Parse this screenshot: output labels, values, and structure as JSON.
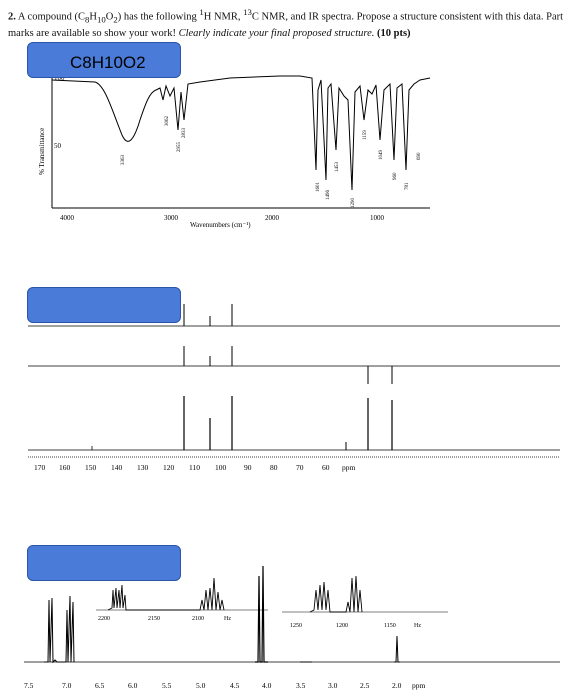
{
  "question": {
    "number": "2.",
    "text_a": "A compound (C",
    "sub8": "8",
    "text_b": "H",
    "sub10": "10",
    "text_c": "O",
    "sub2": "2",
    "text_d": ") has the following ",
    "sup1": "1",
    "text_e": "H NMR, ",
    "sup13": "13",
    "text_f": "C NMR, and IR spectra. Propose a structure consistent with this data. Part marks are available so show your work! ",
    "italic": "Clearly indicate your final proposed structure.",
    "points": "(10 pts)"
  },
  "ir": {
    "formula_label": "C8H10O2",
    "y_axis_label": "% Transmittance",
    "y_ticks": [
      "100",
      "50"
    ],
    "x_ticks": [
      "4000",
      "3000",
      "2000",
      "1000"
    ],
    "x_axis_label": "Wavenumbers (cm⁻¹)",
    "peak_labels": [
      "3363",
      "3062",
      "2955",
      "2833",
      "1601",
      "1496",
      "1453",
      "1290",
      "1159",
      "1049",
      "960",
      "781",
      "690"
    ]
  },
  "c13": {
    "label_box": "",
    "x_ticks": [
      "170",
      "160",
      "150",
      "140",
      "130",
      "120",
      "110",
      "100",
      "90",
      "80",
      "70",
      "60"
    ],
    "unit": "ppm"
  },
  "h1": {
    "label_box": "",
    "x_ticks": [
      "7.5",
      "7.0",
      "6.5",
      "6.0",
      "5.5",
      "5.0",
      "4.5",
      "4.0",
      "3.5",
      "3.0",
      "2.5",
      "2.0"
    ],
    "unit": "ppm",
    "inset1_ticks": [
      "2200",
      "2150",
      "2100",
      "Hz"
    ],
    "inset2_ticks": [
      "1250",
      "1200",
      "1150",
      "Hz"
    ]
  }
}
